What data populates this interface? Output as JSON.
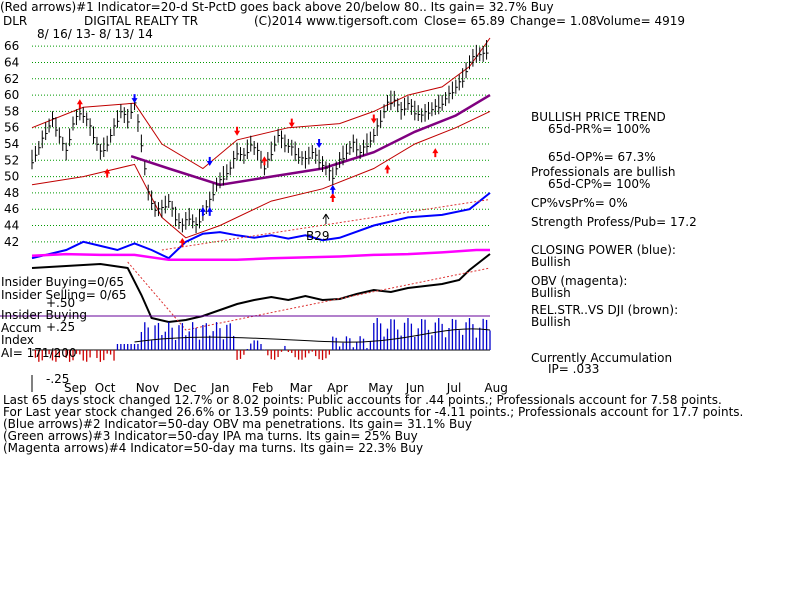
{
  "header": {
    "line1": "(Red arrows)#1 Indicator=20-d St-PctD goes back above 20/below 80..  Its gain= 32.7% Buy",
    "ticker": "DLR",
    "company": "DIGITAL REALTY TR",
    "copyright": "(C)2014 www.tigersoft.com",
    "close": "Close=  65.89",
    "change": "Change= 1.08",
    "volume": "Volume=  4919",
    "dates": "8/ 16/ 13- 8/ 13/ 14"
  },
  "right_panel": {
    "trend": "BULLISH PRICE TREND",
    "pr": "65d-PR%= 100%",
    "op": "65d-OP%= 67.3%",
    "prof": "Professionals are bullish",
    "cp": "65d-CP%= 100%",
    "cpvspr": "CP%vsPr%=  0%",
    "strength": "Strength Profess/Pub= 17.2",
    "closing_power": "CLOSING POWER (blue):",
    "closing_power_val": "Bullish",
    "obv": "OBV (magenta):",
    "obv_val": "Bullish",
    "relstr": "REL.STR..VS DJI (brown):",
    "relstr_val": "Bullish",
    "accum": "Currently Accumulation",
    "ip": "IP=  .033"
  },
  "left_labels": {
    "insider_buying": "Insider Buying=0/65",
    "insider_selling": "Insider Selling= 0/65",
    "plus50": "+.50",
    "insider_buying2": "Insider Buying",
    "accum": "Accum",
    "plus25": "+.25",
    "index": "Index",
    "ai": "AI= 171/200",
    "minus25": "-.25",
    "b29": "B29"
  },
  "footer": {
    "line1": "Last 65 days stock changed  12.7% or  8.02 points:  Public accounts for  .44 points.;  Professionals account for  7.58 points.",
    "line2": "For Last year stock changed  26.6% or  13.59 points:  Public accounts for -4.11 points.;  Professionals account for  17.7 points.",
    "line3": "(Blue arrows)#2 Indicator=50-day OBV ma penetrations. Its gain= 31.1% Buy",
    "line4": "(Green arrows)#3 Indicator=50-day IPA ma turns. Its gain= 25% Buy",
    "line5": "(Magenta arrows)#4 Indicator=50-day ma turns. Its gain= 22.3% Buy"
  },
  "colors": {
    "price": "#000000",
    "bands": "#c00000",
    "ma50": "#800080",
    "closing_power": "#0000ff",
    "obv": "#ff00ff",
    "relstr": "#000000",
    "grid": "#009900",
    "accum_pos": "#0000cc",
    "accum_neg": "#cc0000",
    "arrow_red": "#ff0000",
    "arrow_blue": "#0000ff"
  },
  "chart_data": {
    "type": "line",
    "ylim": [
      41,
      67
    ],
    "yticks": [
      42,
      44,
      46,
      48,
      50,
      52,
      54,
      56,
      58,
      60,
      62,
      64,
      66
    ],
    "months": [
      "Sep",
      "Oct",
      "Nov",
      "Dec",
      "Jan",
      "Feb",
      "Mar",
      "Apr",
      "May",
      "Jun",
      "Jul",
      "Aug"
    ],
    "price_points": [
      [
        0,
        52
      ],
      [
        2,
        53.5
      ],
      [
        4,
        55.5
      ],
      [
        6,
        57
      ],
      [
        8,
        55
      ],
      [
        10,
        53
      ],
      [
        12,
        56.5
      ],
      [
        14,
        58
      ],
      [
        16,
        57
      ],
      [
        18,
        55
      ],
      [
        20,
        53
      ],
      [
        22,
        54
      ],
      [
        24,
        56
      ],
      [
        26,
        58
      ],
      [
        28,
        57
      ],
      [
        30,
        59
      ],
      [
        32,
        54
      ],
      [
        34,
        48
      ],
      [
        36,
        46
      ],
      [
        38,
        46
      ],
      [
        40,
        47
      ],
      [
        42,
        45
      ],
      [
        44,
        44
      ],
      [
        46,
        45
      ],
      [
        48,
        44
      ],
      [
        50,
        45.5
      ],
      [
        52,
        47
      ],
      [
        54,
        49
      ],
      [
        56,
        50
      ],
      [
        58,
        51
      ],
      [
        60,
        53
      ],
      [
        62,
        52.5
      ],
      [
        64,
        54
      ],
      [
        66,
        53
      ],
      [
        68,
        51
      ],
      [
        70,
        53
      ],
      [
        72,
        55
      ],
      [
        74,
        54
      ],
      [
        76,
        53.5
      ],
      [
        78,
        52.5
      ],
      [
        80,
        52
      ],
      [
        82,
        53
      ],
      [
        84,
        52
      ],
      [
        86,
        51
      ],
      [
        88,
        50
      ],
      [
        90,
        52
      ],
      [
        92,
        53
      ],
      [
        94,
        54
      ],
      [
        96,
        53
      ],
      [
        98,
        54
      ],
      [
        100,
        55
      ],
      [
        102,
        57
      ],
      [
        104,
        59
      ],
      [
        106,
        59.5
      ],
      [
        108,
        58
      ],
      [
        110,
        59
      ],
      [
        112,
        58
      ],
      [
        114,
        57.5
      ],
      [
        116,
        58
      ],
      [
        118,
        58.5
      ],
      [
        120,
        59
      ],
      [
        122,
        60
      ],
      [
        124,
        61
      ],
      [
        126,
        62
      ],
      [
        128,
        64
      ],
      [
        130,
        65
      ],
      [
        132,
        65
      ],
      [
        134,
        65.9
      ]
    ],
    "ma50": [
      [
        29,
        52.5
      ],
      [
        40,
        51
      ],
      [
        55,
        49
      ],
      [
        70,
        50
      ],
      [
        85,
        51
      ],
      [
        100,
        53
      ],
      [
        112,
        55.5
      ],
      [
        124,
        57.5
      ],
      [
        134,
        60
      ]
    ],
    "upper_band": [
      [
        0,
        56
      ],
      [
        15,
        58.5
      ],
      [
        30,
        59
      ],
      [
        38,
        54
      ],
      [
        50,
        51
      ],
      [
        60,
        54.5
      ],
      [
        75,
        56
      ],
      [
        90,
        56.5
      ],
      [
        100,
        58
      ],
      [
        110,
        60
      ],
      [
        120,
        61
      ],
      [
        128,
        63.5
      ],
      [
        134,
        67
      ]
    ],
    "lower_band": [
      [
        0,
        49
      ],
      [
        15,
        50
      ],
      [
        30,
        51.5
      ],
      [
        38,
        45
      ],
      [
        45,
        42.5
      ],
      [
        55,
        44
      ],
      [
        70,
        47
      ],
      [
        85,
        48.5
      ],
      [
        100,
        51
      ],
      [
        112,
        54
      ],
      [
        124,
        56
      ],
      [
        134,
        58
      ]
    ],
    "closing_power": [
      [
        0,
        40
      ],
      [
        5,
        40.5
      ],
      [
        10,
        41
      ],
      [
        15,
        42
      ],
      [
        20,
        41.5
      ],
      [
        25,
        41
      ],
      [
        30,
        41.8
      ],
      [
        35,
        41
      ],
      [
        40,
        40
      ],
      [
        45,
        42
      ],
      [
        50,
        43
      ],
      [
        55,
        43.2
      ],
      [
        60,
        42.8
      ],
      [
        65,
        42.5
      ],
      [
        70,
        42.8
      ],
      [
        75,
        42.4
      ],
      [
        80,
        42.8
      ],
      [
        85,
        42.2
      ],
      [
        90,
        42.5
      ],
      [
        100,
        44
      ],
      [
        110,
        45
      ],
      [
        120,
        45.3
      ],
      [
        128,
        46
      ],
      [
        134,
        48
      ]
    ],
    "obv": [
      [
        0,
        40.3
      ],
      [
        10,
        40.5
      ],
      [
        20,
        40.4
      ],
      [
        30,
        40.4
      ],
      [
        40,
        39.8
      ],
      [
        60,
        39.8
      ],
      [
        70,
        40
      ],
      [
        90,
        40.2
      ],
      [
        100,
        40.4
      ],
      [
        110,
        40.5
      ],
      [
        120,
        40.7
      ],
      [
        130,
        41
      ],
      [
        134,
        41
      ]
    ]
  }
}
